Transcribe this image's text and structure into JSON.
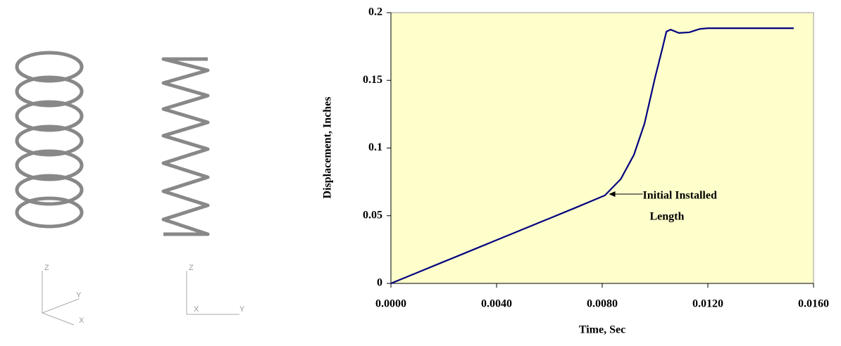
{
  "illustrations": [
    {
      "axes": [
        "Z",
        "Y",
        "X"
      ]
    },
    {
      "axes": [
        "Z",
        "X",
        "Y"
      ]
    }
  ],
  "chart_data": {
    "type": "line",
    "x_label": "Time, Sec",
    "y_label": "Displacement, Inches",
    "x": [
      0,
      0.001,
      0.002,
      0.003,
      0.004,
      0.005,
      0.006,
      0.007,
      0.0081,
      0.0087,
      0.0092,
      0.0096,
      0.01,
      0.01027,
      0.01043,
      0.01059,
      0.0109,
      0.0113,
      0.0117,
      0.012,
      0.0135,
      0.01525
    ],
    "values": [
      0,
      0.008,
      0.016,
      0.024,
      0.032,
      0.04,
      0.048,
      0.056,
      0.065,
      0.077,
      0.095,
      0.118,
      0.152,
      0.173,
      0.186,
      0.1875,
      0.185,
      0.1855,
      0.188,
      0.1885,
      0.1885,
      0.1885
    ],
    "color": "#000080",
    "background": "#ffffcc",
    "xlim": [
      0,
      0.016
    ],
    "ylim": [
      0,
      0.2
    ],
    "xticks": [
      {
        "value": 0,
        "label": "0.0000"
      },
      {
        "value": 0.004,
        "label": "0.0040"
      },
      {
        "value": 0.008,
        "label": "0.0080"
      },
      {
        "value": 0.012,
        "label": "0.0120"
      },
      {
        "value": 0.016,
        "label": "0.0160"
      }
    ],
    "yticks": [
      0,
      0.05,
      0.1,
      0.15,
      0.2
    ],
    "annotation": {
      "lines": [
        "Initial Installed",
        "Length"
      ],
      "x": 0.0082,
      "y": 0.066
    }
  }
}
